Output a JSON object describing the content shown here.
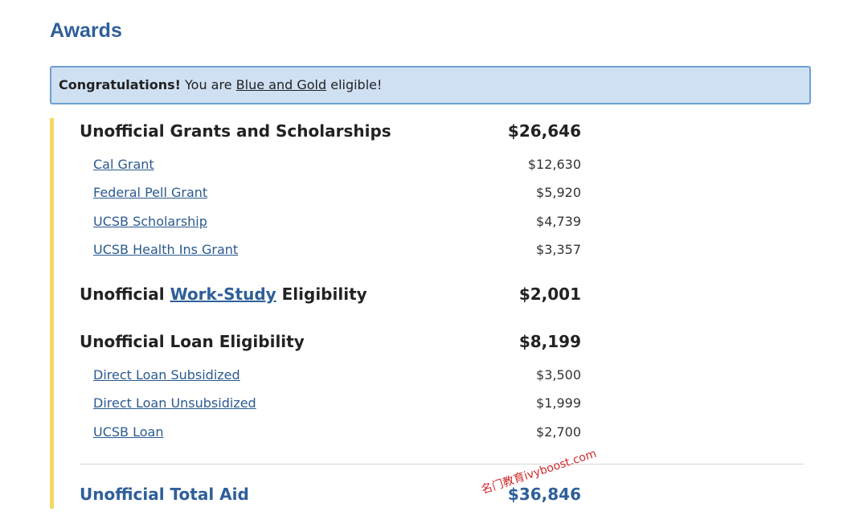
{
  "header": {
    "title": "Awards"
  },
  "banner": {
    "strong": "Congratulations!",
    "before": "You are",
    "link": "Blue and Gold",
    "after": "eligible!"
  },
  "sections": [
    {
      "label": "Unofficial Grants and Scholarships",
      "amount": "$26,646",
      "items": [
        {
          "label": "Cal Grant",
          "amount": "$12,630"
        },
        {
          "label": "Federal Pell Grant",
          "amount": "$5,920"
        },
        {
          "label": "UCSB Scholarship",
          "amount": "$4,739"
        },
        {
          "label": "UCSB Health Ins Grant",
          "amount": "$3,357"
        }
      ]
    },
    {
      "label_before": "Unofficial",
      "link": "Work-Study",
      "label_after": "Eligibility",
      "amount": "$2,001"
    },
    {
      "label": "Unofficial Loan Eligibility",
      "amount": "$8,199",
      "items": [
        {
          "label": "Direct Loan Subsidized",
          "amount": "$3,500"
        },
        {
          "label": "Direct Loan Unsubsidized",
          "amount": "$1,999"
        },
        {
          "label": "UCSB Loan",
          "amount": "$2,700"
        }
      ]
    }
  ],
  "total": {
    "label": "Unofficial Total Aid",
    "amount": "$36,846"
  },
  "watermark": "名门教育ivyboost.com"
}
